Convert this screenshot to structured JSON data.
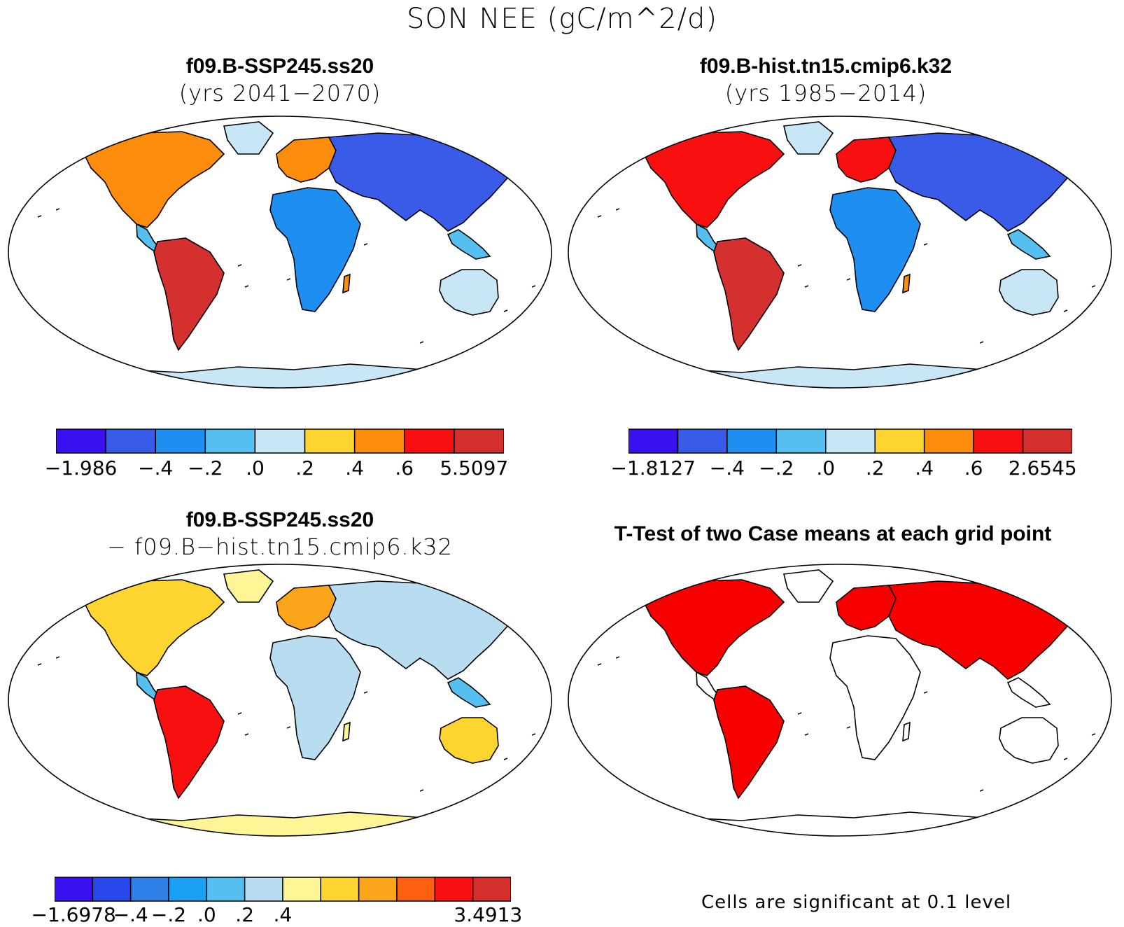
{
  "title": "SON NEE (gC/m^2/d)",
  "panels": [
    {
      "id": "p1",
      "case": "f09.B-SSP245.ss20",
      "subtitle": "(yrs 2041−2070)",
      "colorbar": {
        "colors": [
          "#3a10f0",
          "#3a5ae8",
          "#1e8ff0",
          "#55c0f0",
          "#c8e6f6",
          "#fed530",
          "#fc8c0c",
          "#f81010",
          "#d43030"
        ],
        "labels": [
          "−1.986",
          "−.4",
          "−.2",
          ".0",
          ".2",
          ".4",
          ".6",
          "5.5097"
        ]
      }
    },
    {
      "id": "p2",
      "case": "f09.B-hist.tn15.cmip6.k32",
      "subtitle": "(yrs 1985−2014)",
      "colorbar": {
        "colors": [
          "#3a10f0",
          "#3a5ae8",
          "#1e8ff0",
          "#55c0f0",
          "#c8e6f6",
          "#fed530",
          "#fc8c0c",
          "#f81010",
          "#d43030"
        ],
        "labels": [
          "−1.8127",
          "−.4",
          "−.2",
          ".0",
          ".2",
          ".4",
          ".6",
          "2.6545"
        ]
      }
    },
    {
      "id": "p3",
      "case": "f09.B-SSP245.ss20",
      "subtitle": "− f09.B−hist.tn15.cmip6.k32",
      "colorbar": {
        "colors": [
          "#3a10f0",
          "#2848ec",
          "#2f7fe8",
          "#1aa0f4",
          "#55c0f0",
          "#b8dcf0",
          "#fef596",
          "#fed530",
          "#fca41a",
          "#fc6010",
          "#f81010",
          "#d43030"
        ],
        "labels": [
          "−1.6978",
          "−.4",
          "−.2",
          ".0",
          ".2",
          ".4",
          "3.4913"
        ]
      }
    },
    {
      "id": "p4",
      "title": "T-Test of two Case means at each grid point",
      "footnote": "Cells are significant at 0.1 level",
      "significant_color": "#f80000"
    }
  ]
}
